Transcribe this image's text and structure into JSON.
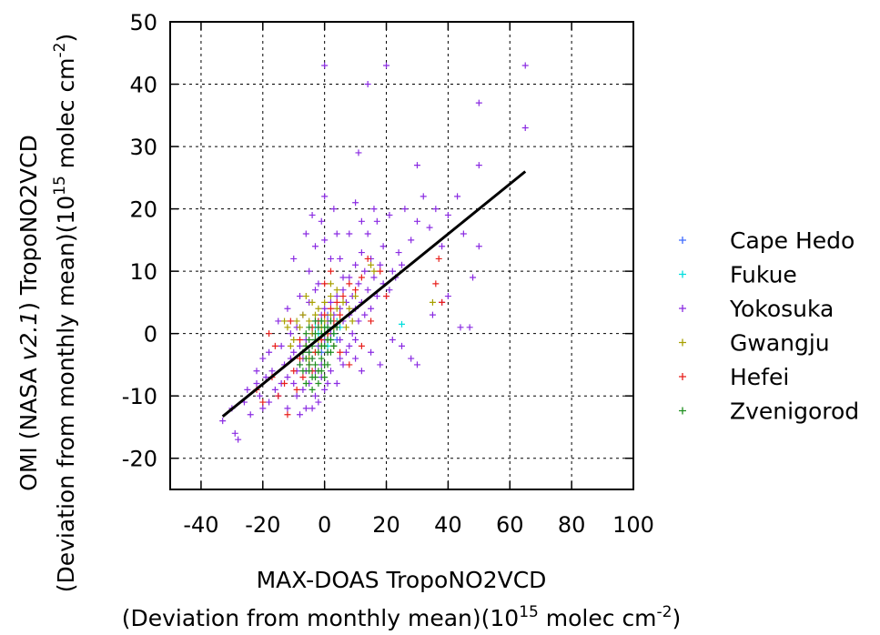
{
  "chart_data": {
    "type": "scatter",
    "title": "",
    "xlabel": {
      "line1": "MAX-DOAS TropoNO2VCD",
      "line2_prefix": "(Deviation from monthly mean)(10",
      "line2_exp": "15",
      "line2_mid": " molec cm",
      "line2_exp2": "-2",
      "line2_suffix": ")"
    },
    "ylabel": {
      "line1_prefix": "OMI (NASA ",
      "line1_italic": "v2.1",
      "line1_suffix": ") TropoNO2VCD",
      "line2_prefix": "(Deviation from monthly mean)(10",
      "line2_exp": "15",
      "line2_mid": " molec cm",
      "line2_exp2": "-2",
      "line2_suffix": ")"
    },
    "xlim": [
      -50,
      100
    ],
    "ylim": [
      -25,
      50
    ],
    "xticks": [
      -40,
      -20,
      0,
      20,
      40,
      60,
      80,
      100
    ],
    "xtick_labels": [
      "-40",
      "-20",
      "0",
      "20",
      "40",
      "60",
      "80",
      "100"
    ],
    "yticks": [
      -20,
      -10,
      0,
      10,
      20,
      30,
      40,
      50
    ],
    "ytick_labels": [
      "-20",
      "-10",
      "0",
      "10",
      "20",
      "30",
      "40",
      "50"
    ],
    "grid": true,
    "legend_position": "right",
    "marker": "+",
    "regression_line": {
      "x": [
        -33,
        65
      ],
      "y": [
        -13.3,
        26
      ],
      "color": "#000000"
    },
    "series": [
      {
        "name": "Cape Hedo",
        "color": "#3f6bff",
        "points": [
          [
            -3,
            -1
          ],
          [
            -1,
            0
          ],
          [
            1,
            1
          ],
          [
            2,
            0
          ],
          [
            -2,
            2
          ],
          [
            0,
            -2
          ],
          [
            3,
            1
          ],
          [
            4,
            -1
          ],
          [
            -4,
            0
          ],
          [
            1,
            3
          ],
          [
            -1,
            -3
          ],
          [
            2,
            2
          ]
        ]
      },
      {
        "name": "Fukue",
        "color": "#00dede",
        "points": [
          [
            -2,
            0
          ],
          [
            0,
            1
          ],
          [
            2,
            -1
          ],
          [
            -1,
            2
          ],
          [
            3,
            0
          ],
          [
            1,
            -2
          ],
          [
            -3,
            1
          ],
          [
            4,
            2
          ],
          [
            0,
            -1
          ],
          [
            5,
            1
          ],
          [
            -2,
            -2
          ],
          [
            25,
            1.5
          ]
        ]
      },
      {
        "name": "Yokosuka",
        "color": "#8a2be2",
        "points": [
          [
            -33,
            -14
          ],
          [
            -30,
            -12
          ],
          [
            -29,
            -16
          ],
          [
            -28,
            -17
          ],
          [
            -26,
            -11
          ],
          [
            -25,
            -9
          ],
          [
            -24,
            -13
          ],
          [
            -22,
            -8
          ],
          [
            -21,
            -10
          ],
          [
            -20,
            -12
          ],
          [
            -19,
            -7
          ],
          [
            -18,
            -11
          ],
          [
            -17,
            -6
          ],
          [
            -16,
            -9
          ],
          [
            -15,
            -10
          ],
          [
            -14,
            -8
          ],
          [
            -13,
            -5
          ],
          [
            -12,
            -7
          ],
          [
            -12,
            -12
          ],
          [
            -11,
            -4
          ],
          [
            -10,
            -8
          ],
          [
            -10,
            -3
          ],
          [
            -9,
            -6
          ],
          [
            -9,
            -10
          ],
          [
            -8,
            -2
          ],
          [
            -8,
            -5
          ],
          [
            -7,
            -4
          ],
          [
            -7,
            -9
          ],
          [
            -6,
            -1
          ],
          [
            -6,
            -6
          ],
          [
            -5,
            -3
          ],
          [
            -5,
            -8
          ],
          [
            -4,
            0
          ],
          [
            -4,
            -4
          ],
          [
            -3,
            2
          ],
          [
            -3,
            -6
          ],
          [
            -2,
            1
          ],
          [
            -2,
            -2
          ],
          [
            -1,
            3
          ],
          [
            -1,
            -5
          ],
          [
            0,
            4
          ],
          [
            0,
            -1
          ],
          [
            1,
            2
          ],
          [
            1,
            -3
          ],
          [
            2,
            5
          ],
          [
            2,
            0
          ],
          [
            3,
            3
          ],
          [
            3,
            -2
          ],
          [
            4,
            6
          ],
          [
            4,
            1
          ],
          [
            5,
            4
          ],
          [
            5,
            -1
          ],
          [
            6,
            7
          ],
          [
            6,
            2
          ],
          [
            7,
            5
          ],
          [
            8,
            9
          ],
          [
            8,
            3
          ],
          [
            9,
            6
          ],
          [
            10,
            11
          ],
          [
            10,
            4
          ],
          [
            11,
            8
          ],
          [
            12,
            13
          ],
          [
            12,
            5
          ],
          [
            13,
            10
          ],
          [
            14,
            7
          ],
          [
            15,
            12
          ],
          [
            16,
            9
          ],
          [
            17,
            18
          ],
          [
            18,
            11
          ],
          [
            19,
            14
          ],
          [
            20,
            6
          ],
          [
            21,
            19
          ],
          [
            22,
            10
          ],
          [
            24,
            13
          ],
          [
            26,
            20
          ],
          [
            28,
            15
          ],
          [
            30,
            18
          ],
          [
            32,
            22
          ],
          [
            34,
            17
          ],
          [
            36,
            20
          ],
          [
            38,
            14
          ],
          [
            40,
            19
          ],
          [
            43,
            22
          ],
          [
            45,
            16
          ],
          [
            48,
            9
          ],
          [
            50,
            14
          ],
          [
            -5,
            10
          ],
          [
            -3,
            14
          ],
          [
            -1,
            18
          ],
          [
            0,
            22
          ],
          [
            2,
            12
          ],
          [
            4,
            16
          ],
          [
            6,
            9
          ],
          [
            -8,
            6
          ],
          [
            -10,
            12
          ],
          [
            -6,
            16
          ],
          [
            -4,
            19
          ],
          [
            -2,
            8
          ],
          [
            0,
            15
          ],
          [
            3,
            20
          ],
          [
            5,
            12
          ],
          [
            8,
            16
          ],
          [
            10,
            21
          ],
          [
            12,
            18
          ],
          [
            14,
            16
          ],
          [
            16,
            20
          ],
          [
            -12,
            4
          ],
          [
            -15,
            2
          ],
          [
            -11,
            0
          ],
          [
            -14,
            -2
          ],
          [
            -9,
            1
          ],
          [
            -7,
            3
          ],
          [
            -5,
            5
          ],
          [
            -3,
            7
          ],
          [
            8,
            -2
          ],
          [
            10,
            -4
          ],
          [
            12,
            -6
          ],
          [
            15,
            -3
          ],
          [
            18,
            -5
          ],
          [
            22,
            -1
          ],
          [
            25,
            -2
          ],
          [
            28,
            -4
          ],
          [
            30,
            -5
          ],
          [
            35,
            3
          ],
          [
            38,
            5
          ],
          [
            40,
            6
          ],
          [
            44,
            1
          ],
          [
            47,
            1
          ],
          [
            10,
            -1
          ],
          [
            6,
            -5
          ],
          [
            4,
            -8
          ],
          [
            2,
            -6
          ],
          [
            0,
            -9
          ],
          [
            -2,
            -11
          ],
          [
            -4,
            -12
          ],
          [
            0,
            43
          ],
          [
            14,
            40
          ],
          [
            20,
            43
          ],
          [
            65,
            43
          ],
          [
            50,
            37
          ],
          [
            65,
            33
          ],
          [
            11,
            29
          ],
          [
            30,
            27
          ],
          [
            50,
            27
          ],
          [
            -1,
            -7
          ],
          [
            1,
            -8
          ],
          [
            -6,
            -12
          ],
          [
            -8,
            -13
          ],
          [
            -3,
            -10
          ],
          [
            5,
            -4
          ],
          [
            7,
            -3
          ],
          [
            9,
            0
          ],
          [
            11,
            2
          ],
          [
            13,
            3
          ],
          [
            15,
            4
          ],
          [
            17,
            6
          ],
          [
            19,
            8
          ],
          [
            21,
            7
          ],
          [
            23,
            9
          ],
          [
            25,
            11
          ],
          [
            -20,
            -4
          ],
          [
            -22,
            -6
          ],
          [
            -18,
            -3
          ]
        ]
      },
      {
        "name": "Gwangju",
        "color": "#a8a000",
        "points": [
          [
            -10,
            -1
          ],
          [
            -8,
            1
          ],
          [
            -6,
            -2
          ],
          [
            -5,
            2
          ],
          [
            -4,
            0
          ],
          [
            -3,
            3
          ],
          [
            -2,
            -1
          ],
          [
            -1,
            1
          ],
          [
            0,
            2
          ],
          [
            1,
            0
          ],
          [
            2,
            3
          ],
          [
            3,
            1
          ],
          [
            4,
            4
          ],
          [
            5,
            2
          ],
          [
            6,
            5
          ],
          [
            -7,
            3
          ],
          [
            -9,
            2
          ],
          [
            -12,
            1
          ],
          [
            -11,
            -2
          ],
          [
            -13,
            2
          ],
          [
            -2,
            4
          ],
          [
            0,
            5
          ],
          [
            2,
            6
          ],
          [
            4,
            7
          ],
          [
            8,
            4
          ],
          [
            10,
            6
          ],
          [
            15,
            11
          ],
          [
            16,
            10
          ],
          [
            35,
            5
          ],
          [
            -3,
            -3
          ],
          [
            -1,
            -2
          ],
          [
            1,
            -1
          ],
          [
            3,
            -2
          ],
          [
            -5,
            -4
          ],
          [
            7,
            1
          ],
          [
            9,
            2
          ],
          [
            0,
            0
          ],
          [
            -4,
            5
          ],
          [
            -6,
            6
          ],
          [
            2,
            8
          ]
        ]
      },
      {
        "name": "Hefei",
        "color": "#e8201c",
        "points": [
          [
            -22,
            -9
          ],
          [
            -20,
            -11
          ],
          [
            -17,
            -7
          ],
          [
            -15,
            -10
          ],
          [
            -13,
            -8
          ],
          [
            -12,
            -13
          ],
          [
            -10,
            -6
          ],
          [
            -9,
            -9
          ],
          [
            -8,
            -4
          ],
          [
            -7,
            -7
          ],
          [
            -6,
            -2
          ],
          [
            -5,
            -5
          ],
          [
            -4,
            1
          ],
          [
            -3,
            -3
          ],
          [
            -2,
            2
          ],
          [
            -1,
            -1
          ],
          [
            0,
            3
          ],
          [
            1,
            0
          ],
          [
            2,
            4
          ],
          [
            3,
            2
          ],
          [
            4,
            5
          ],
          [
            5,
            3
          ],
          [
            6,
            6
          ],
          [
            8,
            8
          ],
          [
            10,
            7
          ],
          [
            12,
            9
          ],
          [
            14,
            12
          ],
          [
            18,
            10
          ],
          [
            20,
            6
          ],
          [
            36,
            8
          ],
          [
            37,
            12
          ],
          [
            38,
            5
          ],
          [
            -16,
            -2
          ],
          [
            -18,
            0
          ],
          [
            -11,
            2
          ],
          [
            0,
            8
          ],
          [
            2,
            10
          ],
          [
            5,
            -3
          ],
          [
            8,
            -5
          ],
          [
            12,
            -2
          ],
          [
            15,
            2
          ],
          [
            -8,
            -1
          ],
          [
            -4,
            -6
          ]
        ]
      },
      {
        "name": "Zvenigorod",
        "color": "#1f8f1f",
        "points": [
          [
            -6,
            -8
          ],
          [
            -5,
            -6
          ],
          [
            -4,
            -7
          ],
          [
            -3,
            -5
          ],
          [
            -2,
            -6
          ],
          [
            -1,
            -4
          ],
          [
            0,
            -5
          ],
          [
            1,
            -3
          ],
          [
            -5,
            -3
          ],
          [
            -4,
            -2
          ],
          [
            -3,
            -1
          ],
          [
            -2,
            -3
          ],
          [
            -1,
            0
          ],
          [
            0,
            -2
          ],
          [
            1,
            1
          ],
          [
            2,
            -1
          ],
          [
            -6,
            -4
          ],
          [
            -5,
            -1
          ],
          [
            -4,
            -4
          ],
          [
            -3,
            0
          ],
          [
            -2,
            1
          ],
          [
            -1,
            -2
          ],
          [
            0,
            0
          ],
          [
            1,
            -1
          ],
          [
            2,
            2
          ],
          [
            3,
            0
          ],
          [
            -7,
            -6
          ],
          [
            -6,
            -2
          ],
          [
            -5,
            -5
          ],
          [
            -4,
            -9
          ],
          [
            -3,
            -7
          ],
          [
            -2,
            -8
          ],
          [
            -1,
            -6
          ],
          [
            0,
            -7
          ],
          [
            1,
            -5
          ],
          [
            -7,
            -3
          ],
          [
            -8,
            -5
          ],
          [
            -6,
            0
          ],
          [
            -5,
            1
          ],
          [
            2,
            -3
          ],
          [
            3,
            -2
          ],
          [
            4,
            1
          ],
          [
            -3,
            2
          ],
          [
            -1,
            2
          ],
          [
            0,
            1
          ]
        ]
      }
    ]
  }
}
